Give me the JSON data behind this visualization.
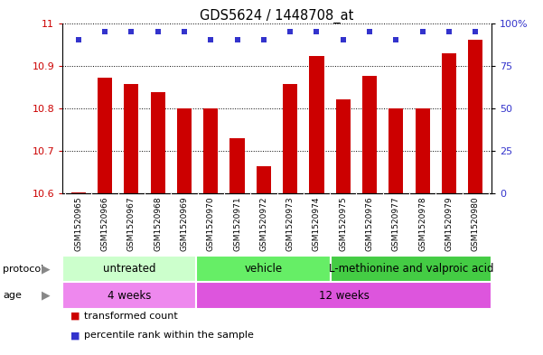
{
  "title": "GDS5624 / 1448708_at",
  "samples": [
    "GSM1520965",
    "GSM1520966",
    "GSM1520967",
    "GSM1520968",
    "GSM1520969",
    "GSM1520970",
    "GSM1520971",
    "GSM1520972",
    "GSM1520973",
    "GSM1520974",
    "GSM1520975",
    "GSM1520976",
    "GSM1520977",
    "GSM1520978",
    "GSM1520979",
    "GSM1520980"
  ],
  "transformed_count": [
    10.603,
    10.872,
    10.857,
    10.838,
    10.8,
    10.8,
    10.73,
    10.663,
    10.857,
    10.923,
    10.82,
    10.877,
    10.8,
    10.8,
    10.93,
    10.96
  ],
  "percentile_rank": [
    90,
    95,
    95,
    95,
    95,
    90,
    90,
    90,
    95,
    95,
    90,
    95,
    90,
    95,
    95,
    95
  ],
  "bar_color": "#cc0000",
  "dot_color": "#3333cc",
  "ylim_left": [
    10.6,
    11.0
  ],
  "ylim_right": [
    0,
    100
  ],
  "yticks_left": [
    10.6,
    10.7,
    10.8,
    10.9,
    11.0
  ],
  "ytick_labels_left": [
    "10.6",
    "10.7",
    "10.8",
    "10.9",
    "11"
  ],
  "yticks_right": [
    0,
    25,
    50,
    75,
    100
  ],
  "ytick_labels_right": [
    "0",
    "25",
    "50",
    "75",
    "100%"
  ],
  "protocol_groups": [
    {
      "label": "untreated",
      "start": 0,
      "end": 5,
      "color": "#ccffcc"
    },
    {
      "label": "vehicle",
      "start": 5,
      "end": 10,
      "color": "#66ee66"
    },
    {
      "label": "L-methionine and valproic acid",
      "start": 10,
      "end": 16,
      "color": "#44cc44"
    }
  ],
  "age_groups": [
    {
      "label": "4 weeks",
      "start": 0,
      "end": 5,
      "color": "#ee88ee"
    },
    {
      "label": "12 weeks",
      "start": 5,
      "end": 16,
      "color": "#dd55dd"
    }
  ],
  "legend_items": [
    {
      "label": "transformed count",
      "color": "#cc0000"
    },
    {
      "label": "percentile rank within the sample",
      "color": "#3333cc"
    }
  ],
  "xtick_bg_color": "#cccccc",
  "bar_width": 0.55
}
